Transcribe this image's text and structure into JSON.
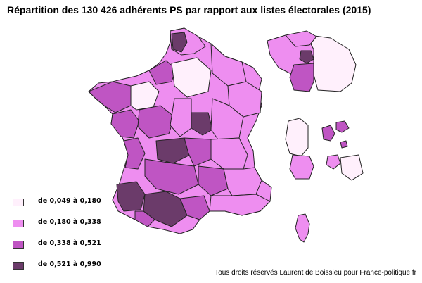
{
  "title": "Répartition des 130 426 adhérents PS par rapport aux listes électorales (2015)",
  "legend": [
    {
      "label": "de 0,049 à 0,180",
      "color": "#fff0fc"
    },
    {
      "label": "de 0,180 à 0,338",
      "color": "#ee8ef0"
    },
    {
      "label": "de 0,338 à 0,521",
      "color": "#bf55c3"
    },
    {
      "label": "de 0,521 à 0,990",
      "color": "#6b3b6a"
    }
  ],
  "credit": "Tous droits réservés Laurent de Boissieu pour France-politique.fr"
}
